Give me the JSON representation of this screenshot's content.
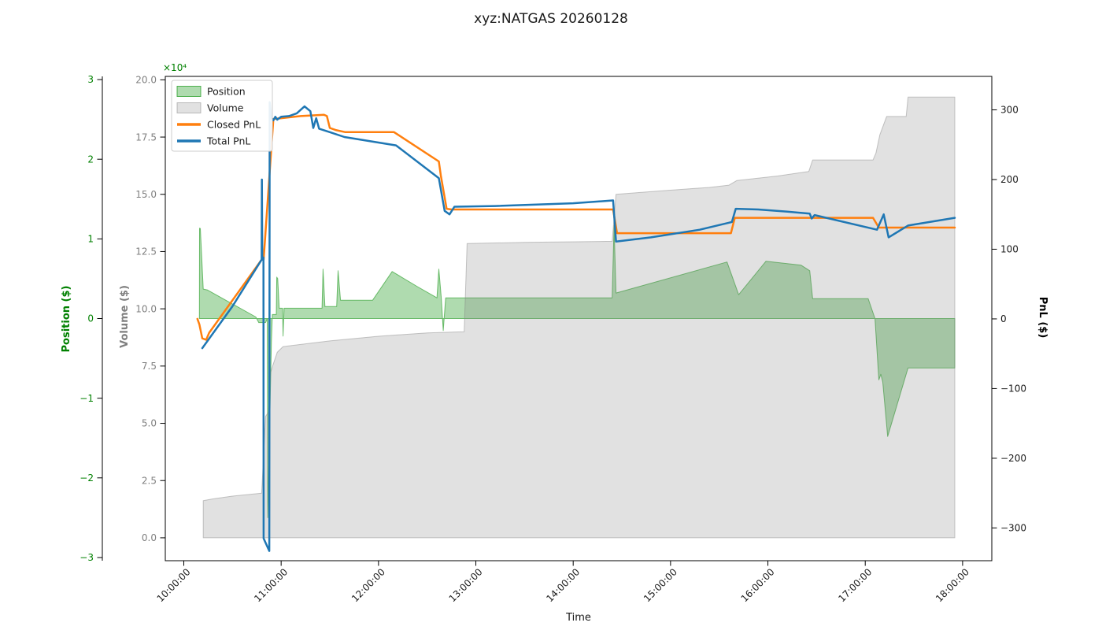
{
  "window": {
    "title": "xyz:NATGAS 20260128"
  },
  "chart_data": {
    "type": "line",
    "title": "xyz:NATGAS 20260128",
    "xlabel": "Time",
    "x_unit": "decimal_hours",
    "grid": false,
    "legend_position": "upper left",
    "axes": {
      "time": {
        "label": "Time",
        "range": [
          9.81,
          18.3
        ],
        "ticks": [
          {
            "v": 10,
            "label": "10:00:00"
          },
          {
            "v": 11,
            "label": "11:00:00"
          },
          {
            "v": 12,
            "label": "12:00:00"
          },
          {
            "v": 13,
            "label": "13:00:00"
          },
          {
            "v": 14,
            "label": "14:00:00"
          },
          {
            "v": 15,
            "label": "15:00:00"
          },
          {
            "v": 16,
            "label": "16:00:00"
          },
          {
            "v": 17,
            "label": "17:00:00"
          },
          {
            "v": 18,
            "label": "18:00:00"
          }
        ]
      },
      "position": {
        "label": "Position ($)",
        "color": "#008000",
        "range": [
          -3.04,
          3.04
        ],
        "ticks": [
          {
            "v": 3,
            "label": "3"
          },
          {
            "v": 2,
            "label": "2"
          },
          {
            "v": 1,
            "label": "1"
          },
          {
            "v": 0,
            "label": "0"
          },
          {
            "v": -1,
            "label": "−1"
          },
          {
            "v": -2,
            "label": "−2"
          },
          {
            "v": -3,
            "label": "−3"
          }
        ]
      },
      "volume": {
        "label": "Volume ($)",
        "color": "#7f7f7f",
        "offset_text": "×10⁴",
        "unit_multiplier": 10000,
        "range": [
          -1,
          20.15
        ],
        "ticks": [
          {
            "v": 20,
            "label": "20.0"
          },
          {
            "v": 17.5,
            "label": "17.5"
          },
          {
            "v": 15,
            "label": "15.0"
          },
          {
            "v": 12.5,
            "label": "12.5"
          },
          {
            "v": 10,
            "label": "10.0"
          },
          {
            "v": 7.5,
            "label": "7.5"
          },
          {
            "v": 5,
            "label": "5.0"
          },
          {
            "v": 2.5,
            "label": "2.5"
          },
          {
            "v": 0,
            "label": "0.0"
          }
        ]
      },
      "pnl": {
        "label": "PnL ($)",
        "color": "#000000",
        "range": [
          -347,
          348
        ],
        "ticks": [
          {
            "v": 300,
            "label": "300"
          },
          {
            "v": 200,
            "label": "200"
          },
          {
            "v": 100,
            "label": "100"
          },
          {
            "v": 0,
            "label": "0"
          },
          {
            "v": -100,
            "label": "−100"
          },
          {
            "v": -200,
            "label": "−200"
          },
          {
            "v": -300,
            "label": "−300"
          }
        ]
      }
    },
    "series": [
      {
        "name": "Position",
        "axis": "position",
        "style": "area",
        "fill": "rgba(44,160,44,0.38)",
        "stroke": "rgba(44,160,44,0.65)",
        "stroke_width": 1,
        "points": [
          [
            10.16,
            0
          ],
          [
            10.162,
            1.135
          ],
          [
            10.17,
            1.13
          ],
          [
            10.2,
            0.37
          ],
          [
            10.24,
            0.36
          ],
          [
            10.74,
            0.02
          ],
          [
            10.77,
            -0.05
          ],
          [
            10.84,
            -0.05
          ],
          [
            10.858,
            0
          ],
          [
            10.862,
            -2.5
          ],
          [
            10.9,
            -0.3
          ],
          [
            10.91,
            0.05
          ],
          [
            10.95,
            0.05
          ],
          [
            10.955,
            0.52
          ],
          [
            10.965,
            0.5
          ],
          [
            10.98,
            0.13
          ],
          [
            11.015,
            0.13
          ],
          [
            11.02,
            -0.22
          ],
          [
            11.03,
            0.13
          ],
          [
            11.42,
            0.13
          ],
          [
            11.43,
            0.62
          ],
          [
            11.45,
            0.15
          ],
          [
            11.57,
            0.15
          ],
          [
            11.585,
            0.6
          ],
          [
            11.61,
            0.23
          ],
          [
            11.94,
            0.23
          ],
          [
            12.14,
            0.59
          ],
          [
            12.4,
            0.4
          ],
          [
            12.6,
            0.26
          ],
          [
            12.62,
            0.62
          ],
          [
            12.645,
            0.26
          ],
          [
            12.665,
            -0.15
          ],
          [
            12.69,
            0.26
          ],
          [
            14.4,
            0.26
          ],
          [
            14.42,
            1.17
          ],
          [
            14.44,
            0.32
          ],
          [
            15.58,
            0.71
          ],
          [
            15.7,
            0.3
          ],
          [
            15.98,
            0.72
          ],
          [
            16.34,
            0.67
          ],
          [
            16.43,
            0.6
          ],
          [
            16.46,
            0.25
          ],
          [
            17.03,
            0.25
          ],
          [
            17.1,
            0
          ],
          [
            17.14,
            -0.77
          ],
          [
            17.16,
            -0.7
          ],
          [
            17.18,
            -0.8
          ],
          [
            17.23,
            -1.48
          ],
          [
            17.44,
            -0.62
          ],
          [
            17.92,
            -0.62
          ]
        ]
      },
      {
        "name": "Volume",
        "axis": "volume",
        "style": "area",
        "fill": "rgba(130,130,130,0.24)",
        "stroke": "rgba(130,130,130,0.45)",
        "stroke_width": 1,
        "points": [
          [
            10.2,
            1.62
          ],
          [
            10.3,
            1.7
          ],
          [
            10.5,
            1.82
          ],
          [
            10.8,
            1.95
          ],
          [
            10.84,
            5.3
          ],
          [
            10.87,
            5.5
          ],
          [
            10.89,
            7.2
          ],
          [
            10.92,
            7.6
          ],
          [
            10.96,
            8.1
          ],
          [
            11.02,
            8.35
          ],
          [
            11.5,
            8.6
          ],
          [
            12.0,
            8.8
          ],
          [
            12.5,
            8.95
          ],
          [
            12.88,
            9.0
          ],
          [
            12.91,
            12.85
          ],
          [
            13.5,
            12.9
          ],
          [
            14.4,
            12.95
          ],
          [
            14.44,
            15.0
          ],
          [
            14.9,
            15.15
          ],
          [
            15.4,
            15.3
          ],
          [
            15.6,
            15.4
          ],
          [
            15.68,
            15.6
          ],
          [
            16.1,
            15.8
          ],
          [
            16.42,
            16.0
          ],
          [
            16.46,
            16.5
          ],
          [
            17.08,
            16.5
          ],
          [
            17.11,
            16.8
          ],
          [
            17.15,
            17.6
          ],
          [
            17.22,
            18.4
          ],
          [
            17.42,
            18.4
          ],
          [
            17.44,
            19.25
          ],
          [
            17.92,
            19.25
          ]
        ]
      },
      {
        "name": "Closed PnL",
        "axis": "pnl",
        "style": "line",
        "stroke": "#ff7f0e",
        "stroke_width": 2.5,
        "points": [
          [
            10.14,
            0
          ],
          [
            10.16,
            -8
          ],
          [
            10.19,
            -28
          ],
          [
            10.23,
            -30
          ],
          [
            10.26,
            -20
          ],
          [
            10.8,
            85
          ],
          [
            10.82,
            85
          ],
          [
            10.92,
            287
          ],
          [
            11.0,
            288
          ],
          [
            11.2,
            291
          ],
          [
            11.44,
            293
          ],
          [
            11.47,
            291
          ],
          [
            11.5,
            274
          ],
          [
            11.56,
            271
          ],
          [
            11.66,
            268
          ],
          [
            12.16,
            268
          ],
          [
            12.62,
            226
          ],
          [
            12.64,
            206
          ],
          [
            12.7,
            158
          ],
          [
            12.75,
            157
          ],
          [
            14.41,
            157
          ],
          [
            14.45,
            123
          ],
          [
            15.62,
            123
          ],
          [
            15.66,
            145
          ],
          [
            17.08,
            145
          ],
          [
            17.14,
            131
          ],
          [
            17.92,
            131
          ]
        ]
      },
      {
        "name": "Total PnL",
        "axis": "pnl",
        "style": "line",
        "stroke": "#1f77b4",
        "stroke_width": 2.5,
        "points": [
          [
            10.19,
            -42
          ],
          [
            10.5,
            18
          ],
          [
            10.8,
            85
          ],
          [
            10.802,
            200
          ],
          [
            10.806,
            85
          ],
          [
            10.818,
            88
          ],
          [
            10.82,
            -315
          ],
          [
            10.878,
            -333
          ],
          [
            10.882,
            311
          ],
          [
            10.9,
            288
          ],
          [
            10.92,
            285
          ],
          [
            10.94,
            290
          ],
          [
            10.96,
            286
          ],
          [
            11.0,
            290
          ],
          [
            11.08,
            291
          ],
          [
            11.16,
            295
          ],
          [
            11.24,
            305
          ],
          [
            11.3,
            298
          ],
          [
            11.33,
            274
          ],
          [
            11.36,
            288
          ],
          [
            11.39,
            273
          ],
          [
            11.5,
            268
          ],
          [
            11.65,
            261
          ],
          [
            12.18,
            249
          ],
          [
            12.62,
            202
          ],
          [
            12.68,
            155
          ],
          [
            12.73,
            150
          ],
          [
            12.78,
            161
          ],
          [
            13.2,
            162
          ],
          [
            14.0,
            166
          ],
          [
            14.41,
            170
          ],
          [
            14.44,
            111
          ],
          [
            14.8,
            117
          ],
          [
            15.3,
            128
          ],
          [
            15.6,
            138
          ],
          [
            15.63,
            139
          ],
          [
            15.67,
            158
          ],
          [
            15.9,
            157
          ],
          [
            16.2,
            154
          ],
          [
            16.43,
            151
          ],
          [
            16.45,
            144
          ],
          [
            16.48,
            149
          ],
          [
            17.12,
            128
          ],
          [
            17.19,
            150
          ],
          [
            17.24,
            117
          ],
          [
            17.44,
            134
          ],
          [
            17.92,
            145
          ]
        ]
      }
    ],
    "legend": [
      {
        "label": "Position",
        "marker": "patch",
        "fill": "rgba(44,160,44,0.38)",
        "stroke": "rgba(44,160,44,0.8)"
      },
      {
        "label": "Volume",
        "marker": "patch",
        "fill": "rgba(130,130,130,0.24)",
        "stroke": "rgba(130,130,130,0.5)"
      },
      {
        "label": "Closed PnL",
        "marker": "line",
        "stroke": "#ff7f0e"
      },
      {
        "label": "Total PnL",
        "marker": "line",
        "stroke": "#1f77b4"
      }
    ]
  }
}
